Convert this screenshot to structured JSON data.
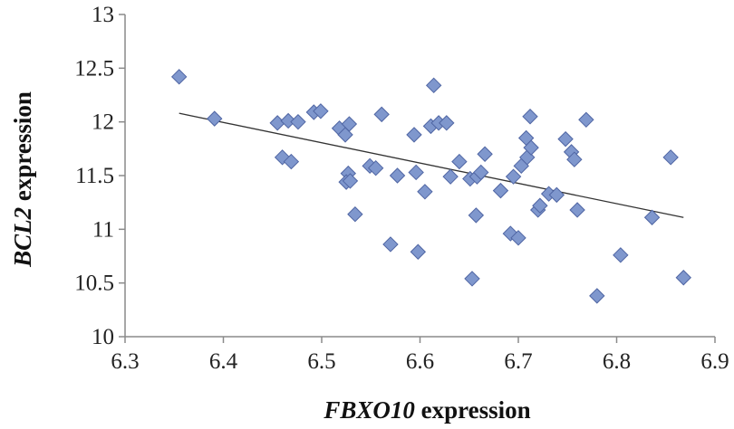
{
  "chart_data": {
    "type": "scatter",
    "title": "",
    "xlabel_gene": "FBXO10",
    "xlabel_rest": " expression",
    "ylabel_gene": "BCL2",
    "ylabel_rest": " expression",
    "xlim": [
      6.3,
      6.9
    ],
    "ylim": [
      10,
      13
    ],
    "x_ticks": [
      "6.3",
      "6.4",
      "6.5",
      "6.6",
      "6.7",
      "6.8",
      "6.9"
    ],
    "y_ticks": [
      "10",
      "10.5",
      "11",
      "11.5",
      "12",
      "12.5",
      "13"
    ],
    "grid": false,
    "legend": "none",
    "marker": "diamond",
    "marker_color": "#7f97cd",
    "marker_edge": "#4f65a3",
    "trendline": {
      "x": [
        6.355,
        6.868
      ],
      "y": [
        12.08,
        11.11
      ],
      "color": "#333333"
    },
    "series": [
      {
        "points": [
          [
            6.355,
            12.42
          ],
          [
            6.391,
            12.03
          ],
          [
            6.455,
            11.99
          ],
          [
            6.46,
            11.67
          ],
          [
            6.466,
            12.01
          ],
          [
            6.469,
            11.63
          ],
          [
            6.476,
            12.0
          ],
          [
            6.492,
            12.09
          ],
          [
            6.499,
            12.1
          ],
          [
            6.518,
            11.94
          ],
          [
            6.524,
            11.88
          ],
          [
            6.528,
            11.98
          ],
          [
            6.527,
            11.52
          ],
          [
            6.525,
            11.44
          ],
          [
            6.529,
            11.45
          ],
          [
            6.534,
            11.14
          ],
          [
            6.549,
            11.59
          ],
          [
            6.555,
            11.57
          ],
          [
            6.561,
            12.07
          ],
          [
            6.57,
            10.86
          ],
          [
            6.577,
            11.5
          ],
          [
            6.594,
            11.88
          ],
          [
            6.596,
            11.53
          ],
          [
            6.598,
            10.79
          ],
          [
            6.605,
            11.35
          ],
          [
            6.611,
            11.96
          ],
          [
            6.614,
            12.34
          ],
          [
            6.619,
            11.99
          ],
          [
            6.627,
            11.99
          ],
          [
            6.631,
            11.49
          ],
          [
            6.64,
            11.63
          ],
          [
            6.651,
            11.47
          ],
          [
            6.653,
            10.54
          ],
          [
            6.657,
            11.13
          ],
          [
            6.658,
            11.49
          ],
          [
            6.662,
            11.53
          ],
          [
            6.666,
            11.7
          ],
          [
            6.682,
            11.36
          ],
          [
            6.692,
            10.96
          ],
          [
            6.695,
            11.49
          ],
          [
            6.7,
            10.92
          ],
          [
            6.703,
            11.59
          ],
          [
            6.708,
            11.85
          ],
          [
            6.709,
            11.67
          ],
          [
            6.712,
            12.05
          ],
          [
            6.713,
            11.76
          ],
          [
            6.72,
            11.18
          ],
          [
            6.722,
            11.22
          ],
          [
            6.731,
            11.33
          ],
          [
            6.739,
            11.32
          ],
          [
            6.748,
            11.84
          ],
          [
            6.754,
            11.72
          ],
          [
            6.757,
            11.65
          ],
          [
            6.76,
            11.18
          ],
          [
            6.769,
            12.02
          ],
          [
            6.78,
            10.38
          ],
          [
            6.804,
            10.76
          ],
          [
            6.836,
            11.11
          ],
          [
            6.855,
            11.67
          ],
          [
            6.868,
            10.55
          ]
        ]
      }
    ]
  }
}
